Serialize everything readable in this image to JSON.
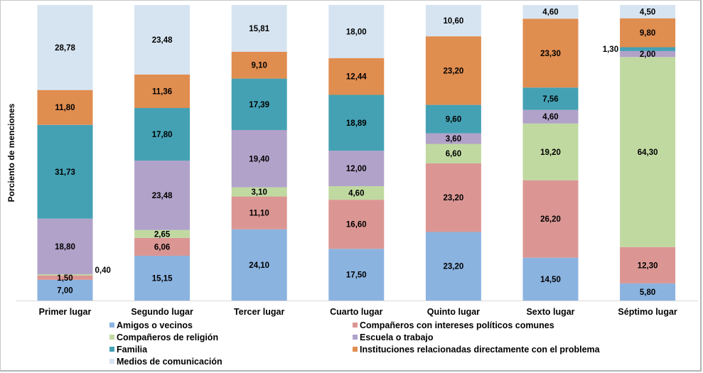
{
  "chart_data": {
    "type": "bar",
    "stacked": true,
    "title": "",
    "xlabel": "",
    "ylabel": "Porciento de menciones",
    "ylim": [
      0,
      100
    ],
    "grid": false,
    "legend_position": "bottom",
    "categories": [
      "Primer lugar",
      "Segundo lugar",
      "Tercer lugar",
      "Cuarto lugar",
      "Quinto lugar",
      "Sexto lugar",
      "Séptimo lugar"
    ],
    "series": [
      {
        "name": "Amigos o vecinos",
        "color": "#8bb3e0",
        "values": [
          7.0,
          15.15,
          24.1,
          17.5,
          23.2,
          14.5,
          5.8
        ],
        "labels": [
          "7,00",
          "15,15",
          "24,10",
          "17,50",
          "23,20",
          "14,50",
          "5,80"
        ]
      },
      {
        "name": "Compañeros con intereses políticos comunes",
        "color": "#db9694",
        "values": [
          1.5,
          6.06,
          11.1,
          16.6,
          23.2,
          26.2,
          12.3
        ],
        "labels": [
          "1,50",
          "6,06",
          "11,10",
          "16,60",
          "23,20",
          "26,20",
          "12,30"
        ]
      },
      {
        "name": "Compañeros de religión",
        "color": "#c0d9a1",
        "values": [
          0.4,
          2.65,
          3.1,
          4.6,
          6.6,
          19.2,
          64.3
        ],
        "labels": [
          "0,40",
          "2,65",
          "3,10",
          "4,60",
          "6,60",
          "19,20",
          "64,30"
        ]
      },
      {
        "name": "Escuela o trabajo",
        "color": "#b1a2c9",
        "values": [
          18.8,
          23.48,
          19.4,
          12.0,
          3.6,
          4.6,
          2.0
        ],
        "labels": [
          "18,80",
          "23,48",
          "19,40",
          "12,00",
          "3,60",
          "4,60",
          "2,00"
        ]
      },
      {
        "name": "Familia",
        "color": "#44a1b4",
        "values": [
          31.73,
          17.8,
          17.39,
          18.89,
          9.6,
          7.56,
          1.3
        ],
        "labels": [
          "31,73",
          "17,80",
          "17,39",
          "18,89",
          "9,60",
          "7,56",
          "1,30"
        ]
      },
      {
        "name": "Instituciones relacionadas directamente con el problema",
        "color": "#e08d50",
        "values": [
          11.8,
          11.36,
          9.1,
          12.44,
          23.2,
          23.3,
          9.8
        ],
        "labels": [
          "11,80",
          "11,36",
          "9,10",
          "12,44",
          "23,20",
          "23,30",
          "9,80"
        ]
      },
      {
        "name": "Medios de comunicación",
        "color": "#d6e4f1",
        "values": [
          28.78,
          23.48,
          15.81,
          18.0,
          10.6,
          4.6,
          4.5
        ],
        "labels": [
          "28,78",
          "23,48",
          "15,81",
          "18,00",
          "10,60",
          "4,60",
          "4,50"
        ]
      }
    ],
    "outside_labels": [
      {
        "category": "Primer lugar",
        "series": "Compañeros de religión",
        "side": "right"
      },
      {
        "category": "Séptimo lugar",
        "series": "Familia",
        "side": "left"
      }
    ],
    "legend_order": [
      "Amigos o vecinos",
      "Compañeros con intereses políticos comunes",
      "Compañeros de religión",
      "Escuela o trabajo",
      "Familia",
      "Instituciones relacionadas directamente con el problema",
      "Medios de comunicación"
    ]
  }
}
